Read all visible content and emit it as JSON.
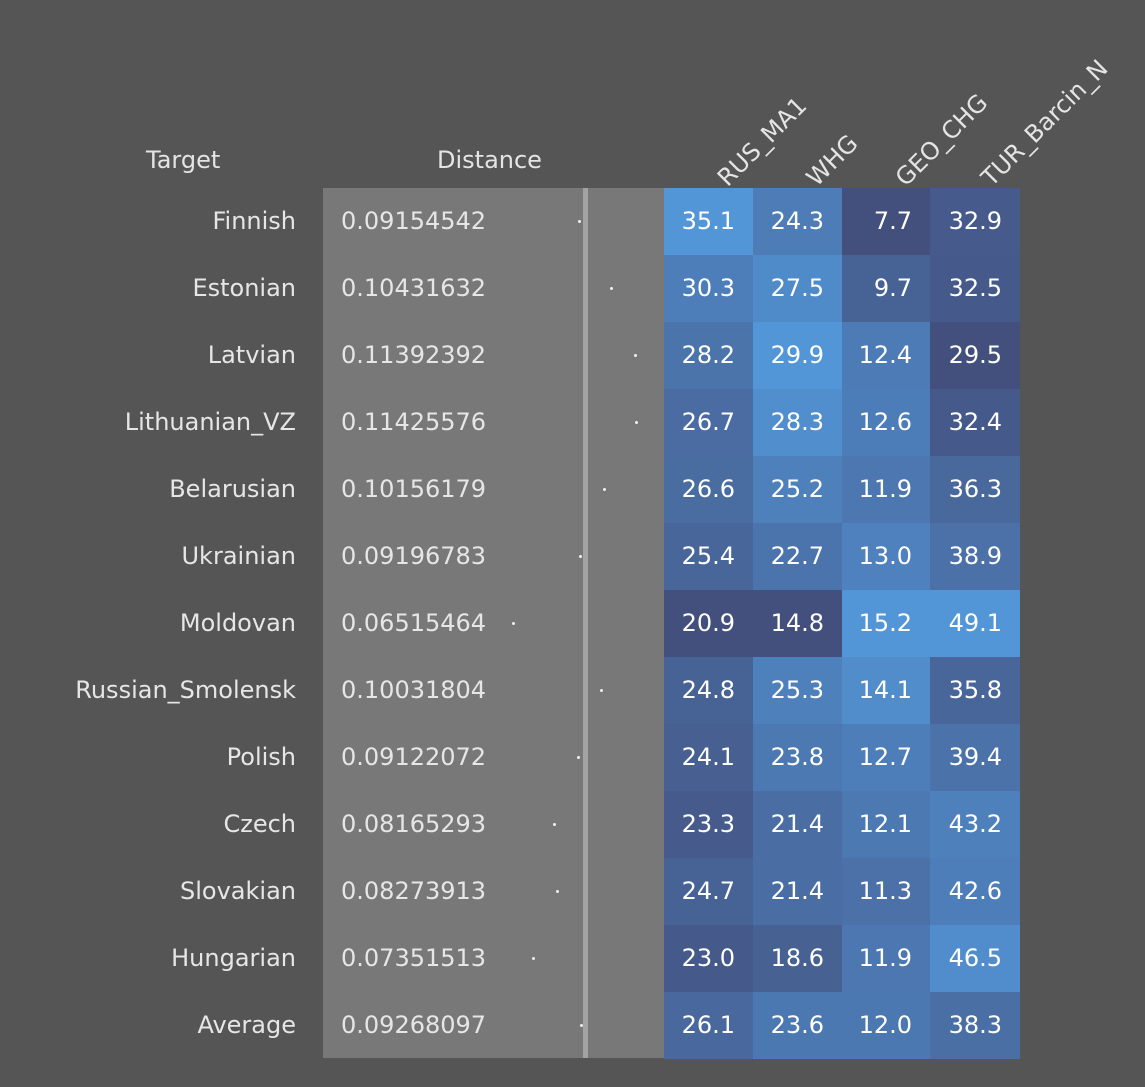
{
  "chart_data": {
    "type": "table",
    "headers": {
      "target": "Target",
      "distance": "Distance",
      "columns": [
        "RUS_MA1",
        "WHG",
        "GEO_CHG",
        "TUR_Barcin_N"
      ]
    },
    "rows": [
      {
        "target": "Finnish",
        "distance": "0.09154542",
        "values": [
          "35.1",
          "24.3",
          "7.7",
          "32.9"
        ]
      },
      {
        "target": "Estonian",
        "distance": "0.10431632",
        "values": [
          "30.3",
          "27.5",
          "9.7",
          "32.5"
        ]
      },
      {
        "target": "Latvian",
        "distance": "0.11392392",
        "values": [
          "28.2",
          "29.9",
          "12.4",
          "29.5"
        ]
      },
      {
        "target": "Lithuanian_VZ",
        "distance": "0.11425576",
        "values": [
          "26.7",
          "28.3",
          "12.6",
          "32.4"
        ]
      },
      {
        "target": "Belarusian",
        "distance": "0.10156179",
        "values": [
          "26.6",
          "25.2",
          "11.9",
          "36.3"
        ]
      },
      {
        "target": "Ukrainian",
        "distance": "0.09196783",
        "values": [
          "25.4",
          "22.7",
          "13.0",
          "38.9"
        ]
      },
      {
        "target": "Moldovan",
        "distance": "0.06515464",
        "values": [
          "20.9",
          "14.8",
          "15.2",
          "49.1"
        ]
      },
      {
        "target": "Russian_Smolensk",
        "distance": "0.10031804",
        "values": [
          "24.8",
          "25.3",
          "14.1",
          "35.8"
        ]
      },
      {
        "target": "Polish",
        "distance": "0.09122072",
        "values": [
          "24.1",
          "23.8",
          "12.7",
          "39.4"
        ]
      },
      {
        "target": "Czech",
        "distance": "0.08165293",
        "values": [
          "23.3",
          "21.4",
          "12.1",
          "43.2"
        ]
      },
      {
        "target": "Slovakian",
        "distance": "0.08273913",
        "values": [
          "24.7",
          "21.4",
          "11.3",
          "42.6"
        ]
      },
      {
        "target": "Hungarian",
        "distance": "0.07351513",
        "values": [
          "23.0",
          "18.6",
          "11.9",
          "46.5"
        ]
      },
      {
        "target": "Average",
        "distance": "0.09268097",
        "values": [
          "26.1",
          "23.6",
          "12.0",
          "38.3"
        ]
      }
    ],
    "colors": {
      "background": "#555555",
      "distance_panel": "#787878",
      "divider": "#a3a3a3",
      "cell_low": "#434f7c",
      "cell_high": "#5396d8"
    }
  }
}
